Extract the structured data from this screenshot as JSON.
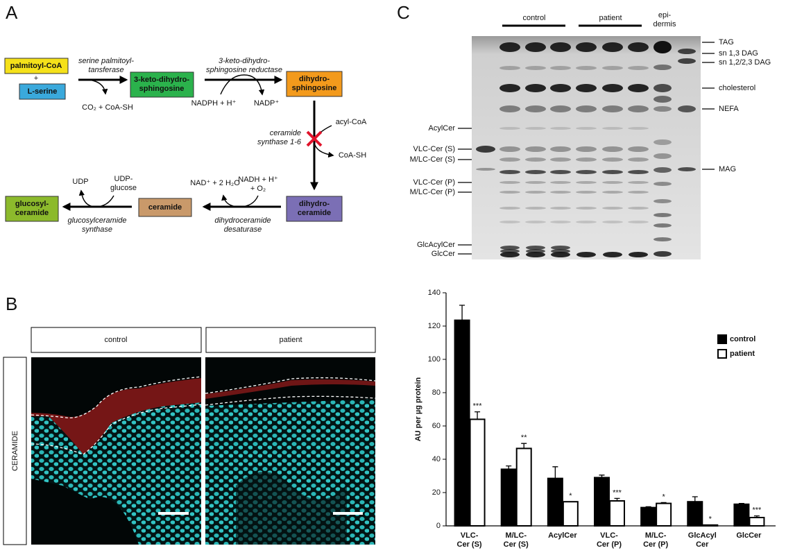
{
  "panel_a": {
    "label": "A",
    "nodes": [
      "palmitoyl-CoA",
      "L-serine",
      "3-keto-dihydro-\nsphingosine",
      "dihydro-\nsphingosine",
      "dihydro-\nceramide",
      "ceramide",
      "glucosyl-\nceramide"
    ],
    "enzymes": [
      "serine palmitoyl-\ntansferase",
      "3-keto-dihydro-\nsphingosine reductase",
      "ceramide\nsynthase 1-6",
      "dihydroceramide\ndesaturase",
      "glucosylceramide\nsynthase"
    ],
    "cofactors": [
      "+",
      "CO₂ + CoA-SH",
      "NADPH + H⁺",
      "NADP⁺",
      "acyl-CoA",
      "CoA-SH",
      "NADH + H⁺\n+ O₂",
      "NAD⁺ + 2 H₂O",
      "UDP-\nglucose",
      "UDP"
    ]
  },
  "panel_b": {
    "label": "B",
    "columns": [
      "control",
      "patient"
    ],
    "row_label": "CERAMIDE"
  },
  "panel_c": {
    "label": "C",
    "lane_groups": [
      "control",
      "patient",
      "epi-\ndermis"
    ],
    "right_labels": [
      "TAG",
      "sn 1,3 DAG",
      "sn 1,2/2,3 DAG",
      "cholesterol",
      "NEFA",
      "MAG"
    ],
    "left_labels": [
      "AcylCer",
      "VLC-Cer (S)",
      "M/LC-Cer (S)",
      "VLC-Cer (P)",
      "M/LC-Cer (P)",
      "GlcAcylCer",
      "GlcCer"
    ]
  },
  "chart_data": {
    "type": "bar",
    "y_label": "AU per µg protein",
    "categories": [
      "VLC-\nCer (S)",
      "M/LC-\nCer (S)",
      "AcylCer",
      "VLC-\nCer (P)",
      "M/LC-\nCer (P)",
      "GlcAcyl\nCer",
      "GlcCer"
    ],
    "series": [
      {
        "name": "control",
        "color": "#000000",
        "values": [
          123.5,
          34,
          28.5,
          29,
          11,
          14.5,
          13
        ],
        "errors": [
          9,
          2,
          7,
          1.5,
          0.5,
          3,
          0.5
        ]
      },
      {
        "name": "patient",
        "color": "#ffffff",
        "values": [
          64,
          46.5,
          14.5,
          15,
          13.5,
          0.5,
          5
        ],
        "errors": [
          4.5,
          3,
          0,
          1.5,
          0.5,
          0,
          1
        ],
        "significance": [
          "***",
          "**",
          "*",
          "***",
          "*",
          "*",
          "***"
        ]
      }
    ],
    "ylim": [
      0,
      140
    ],
    "yticks": [
      0,
      20,
      40,
      60,
      80,
      100,
      120,
      140
    ]
  }
}
